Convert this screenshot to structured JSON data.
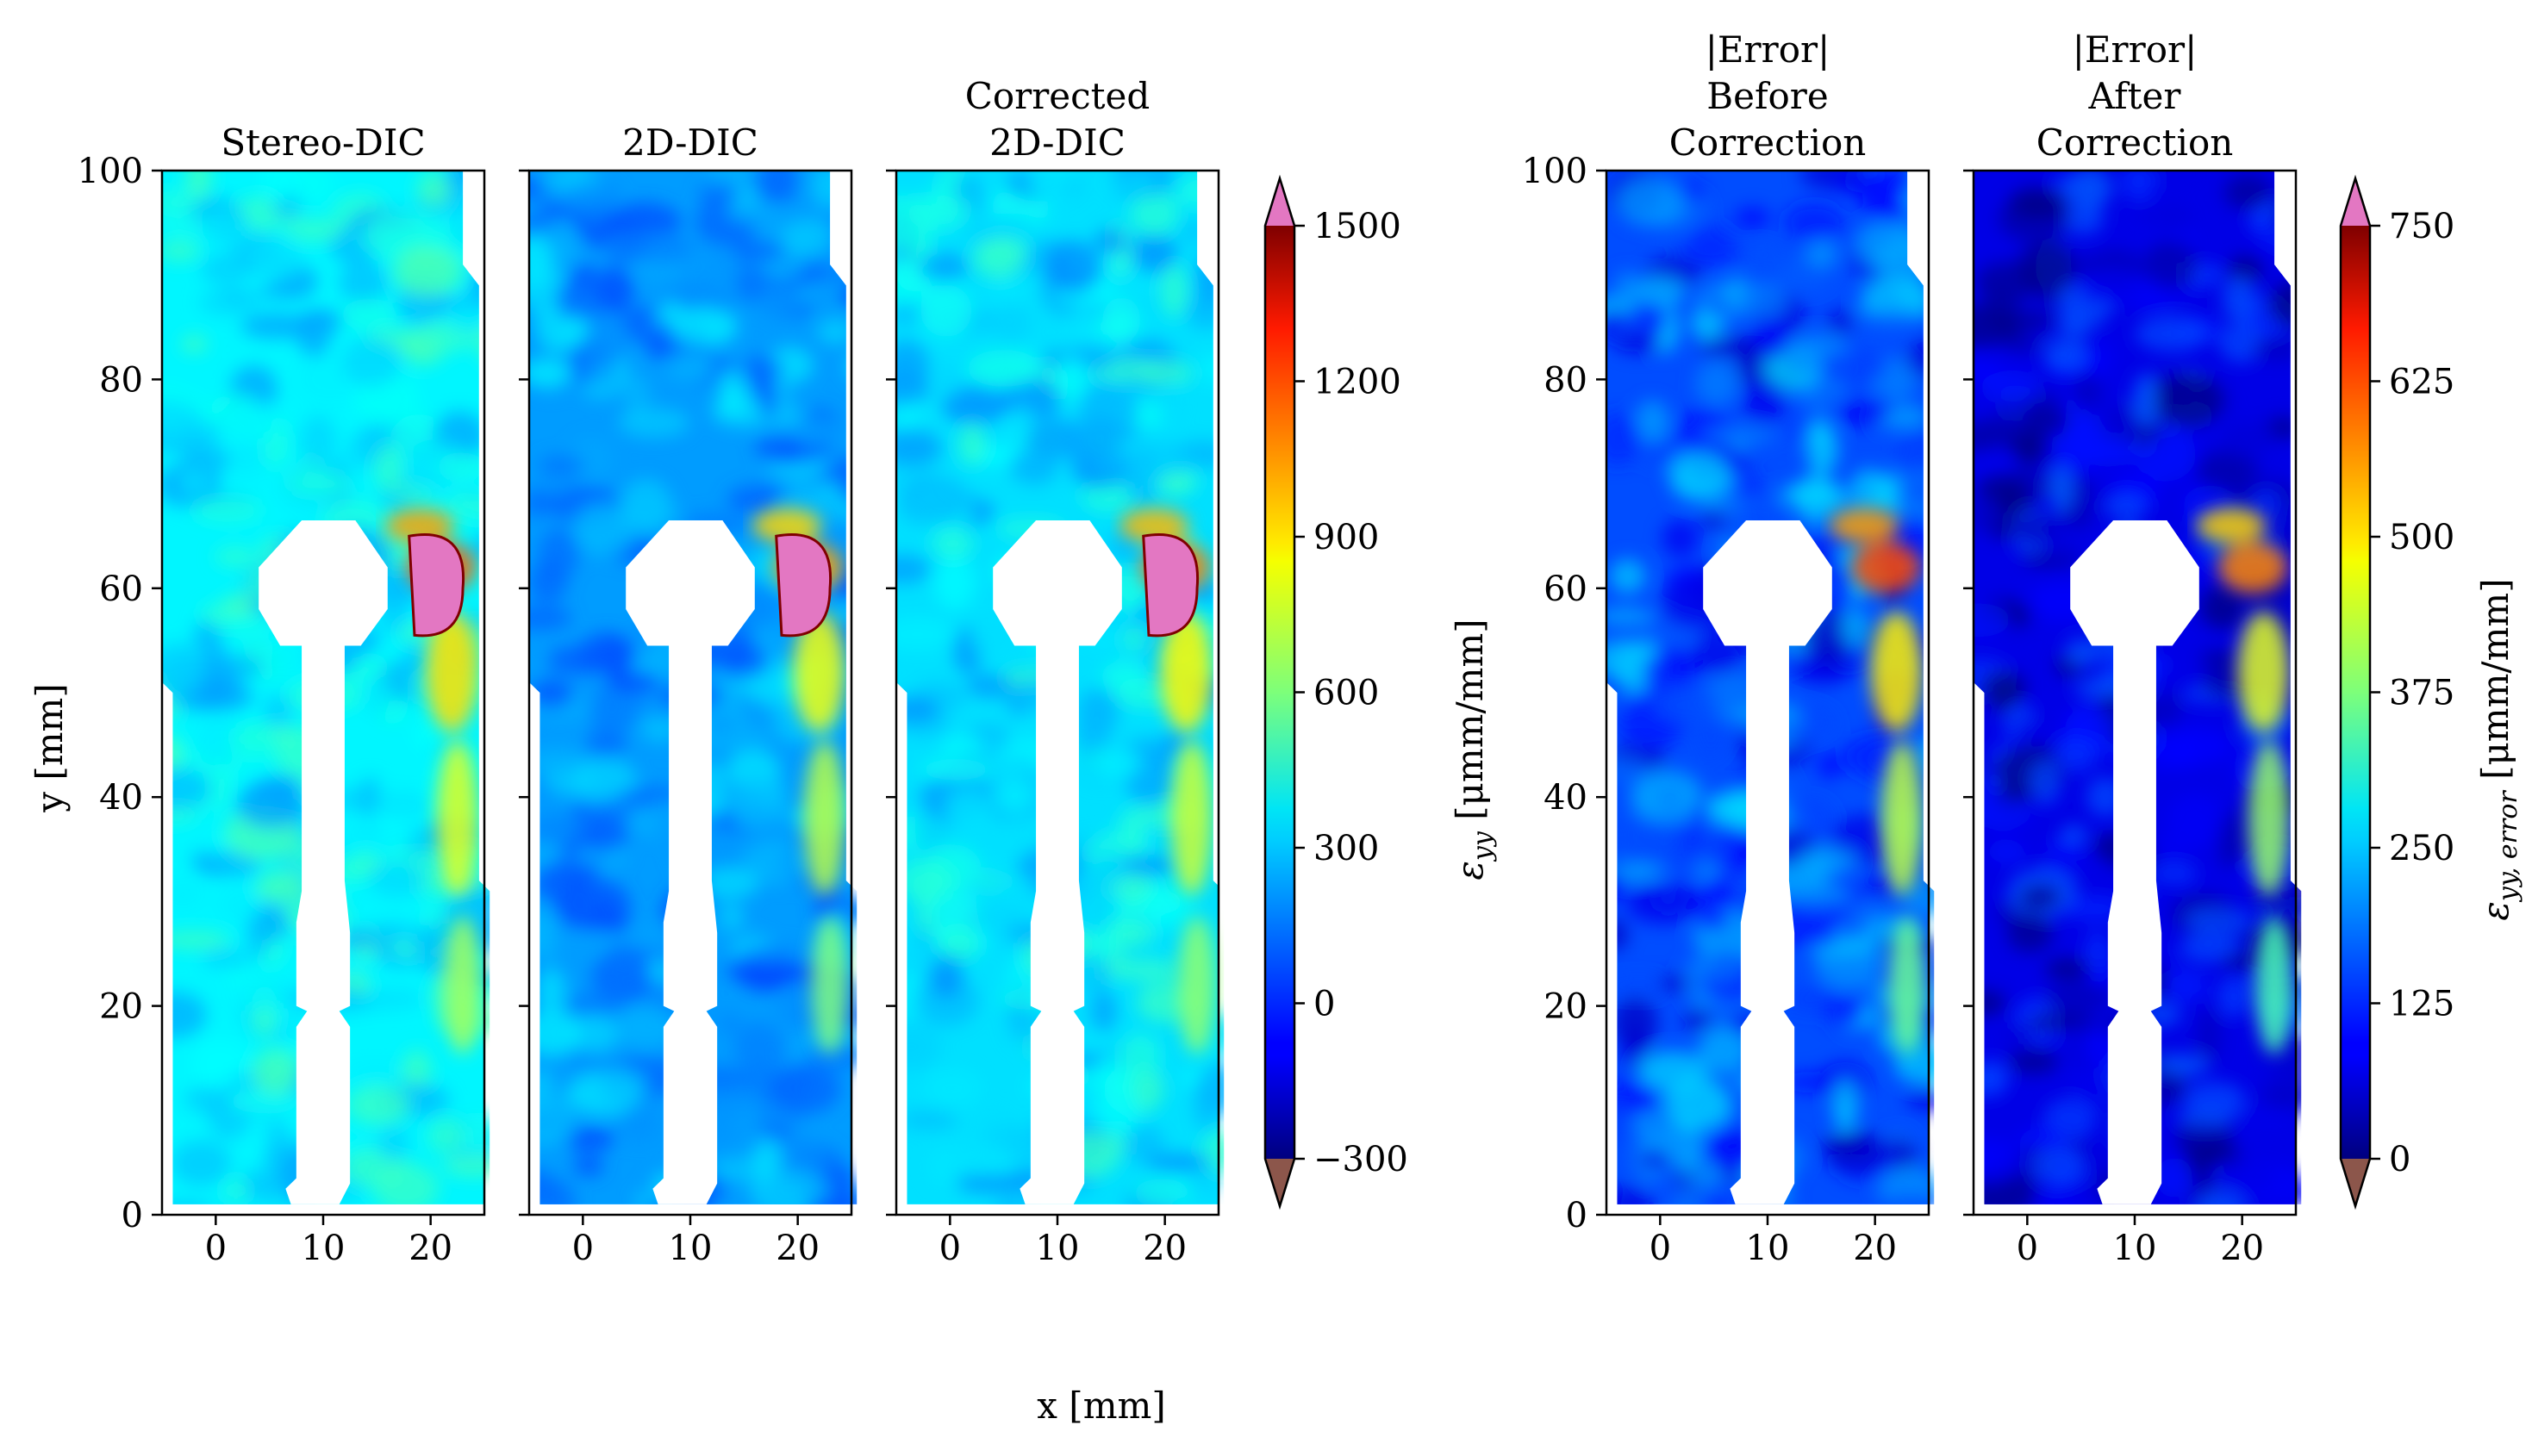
{
  "figure": {
    "x_label": "x [mm]",
    "y_label": "y [mm]",
    "strain_colorbar_label": "εyy [μmm/mm]",
    "strain_colorbar_symbol": "ε",
    "strain_colorbar_subscript": "yy",
    "strain_colorbar_units": " [μmm/mm]",
    "error_colorbar_label": "εyy, error [μmm/mm]",
    "error_colorbar_symbol": "ε",
    "error_colorbar_subscript": "yy, error",
    "error_colorbar_units": " [μmm/mm]"
  },
  "chart_data": [
    {
      "type": "heatmap",
      "title_lines": [
        "Stereo-DIC"
      ],
      "xlabel": "x [mm]",
      "ylabel": "y [mm]",
      "xlim": [
        -5,
        25
      ],
      "ylim": [
        0,
        100
      ],
      "xticks": [
        0,
        10,
        20
      ],
      "yticks": [
        0,
        20,
        40,
        60,
        80,
        100
      ],
      "colorbar": "strain",
      "field": {
        "base": 360,
        "noise": 160,
        "crack_peak": 1100,
        "over_max_region": true
      }
    },
    {
      "type": "heatmap",
      "title_lines": [
        "2D-DIC"
      ],
      "xlabel": "x [mm]",
      "ylabel": "y [mm]",
      "xlim": [
        -5,
        25
      ],
      "ylim": [
        0,
        100
      ],
      "xticks": [
        0,
        10,
        20
      ],
      "yticks": [
        0,
        20,
        40,
        60,
        80,
        100
      ],
      "colorbar": "strain",
      "field": {
        "base": 200,
        "noise": 160,
        "crack_peak": 1000,
        "over_max_region": true
      }
    },
    {
      "type": "heatmap",
      "title_lines": [
        "Corrected",
        "2D-DIC"
      ],
      "xlabel": "x [mm]",
      "ylabel": "y [mm]",
      "xlim": [
        -5,
        25
      ],
      "ylim": [
        0,
        100
      ],
      "xticks": [
        0,
        10,
        20
      ],
      "yticks": [
        0,
        20,
        40,
        60,
        80,
        100
      ],
      "colorbar": "strain",
      "field": {
        "base": 320,
        "noise": 160,
        "crack_peak": 1050,
        "over_max_region": true
      }
    },
    {
      "type": "heatmap",
      "title_lines": [
        "|Error|",
        "Before",
        "Correction"
      ],
      "xlabel": "x [mm]",
      "ylabel": "y [mm]",
      "xlim": [
        -5,
        25
      ],
      "ylim": [
        0,
        100
      ],
      "xticks": [
        0,
        10,
        20
      ],
      "yticks": [
        0,
        20,
        40,
        60,
        80,
        100
      ],
      "colorbar": "error",
      "field": {
        "base": 150,
        "noise": 110,
        "crack_peak": 600,
        "over_max_region": false
      }
    },
    {
      "type": "heatmap",
      "title_lines": [
        "|Error|",
        "After",
        "Correction"
      ],
      "xlabel": "x [mm]",
      "ylabel": "y [mm]",
      "xlim": [
        -5,
        25
      ],
      "ylim": [
        0,
        100
      ],
      "xticks": [
        0,
        10,
        20
      ],
      "yticks": [
        0,
        20,
        40,
        60,
        80,
        100
      ],
      "colorbar": "error",
      "field": {
        "base": 75,
        "noise": 95,
        "crack_peak": 560,
        "over_max_region": false
      }
    }
  ],
  "colorbars": {
    "strain": {
      "min": -300,
      "max": 1500,
      "ticks": [
        1500,
        1200,
        900,
        600,
        300,
        0,
        -300
      ],
      "tick_labels": [
        "1500",
        "1200",
        "900",
        "600",
        "300",
        "0",
        "−300"
      ],
      "over_color": "#e377c2",
      "under_color": "#8c564b",
      "colormap": "jet"
    },
    "error": {
      "min": 0,
      "max": 750,
      "ticks": [
        750,
        625,
        500,
        375,
        250,
        125,
        0
      ],
      "tick_labels": [
        "750",
        "625",
        "500",
        "375",
        "250",
        "125",
        "0"
      ],
      "over_color": "#e377c2",
      "under_color": "#8c564b",
      "colormap": "jet"
    }
  }
}
